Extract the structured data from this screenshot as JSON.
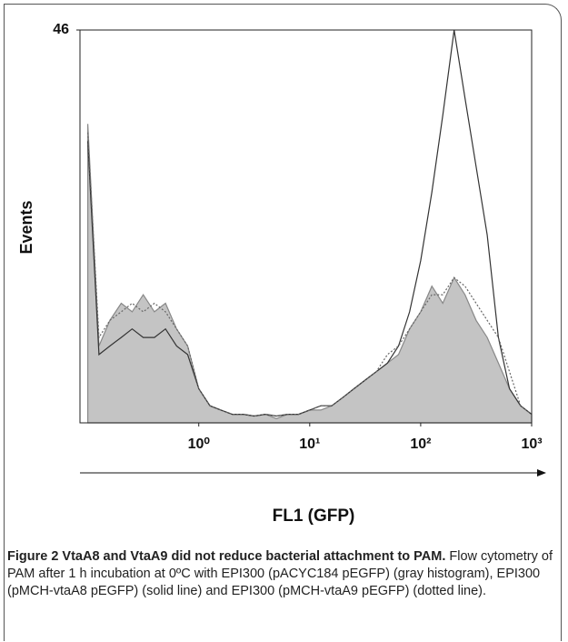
{
  "chart_data": {
    "type": "histogram-overlay",
    "ylabel": "Events",
    "xlabel": "FL1 (GFP)",
    "x": [
      0.1,
      0.126,
      0.158,
      0.2,
      0.251,
      0.316,
      0.398,
      0.501,
      0.631,
      0.794,
      1,
      1.26,
      1.58,
      2,
      2.51,
      3.16,
      3.98,
      5.01,
      6.31,
      7.94,
      10,
      12.6,
      15.8,
      20,
      25.1,
      31.6,
      39.8,
      50.1,
      63.1,
      79.4,
      100,
      126,
      158,
      200,
      251,
      316,
      398,
      501,
      631,
      794,
      1000
    ],
    "series": [
      {
        "style": "filled",
        "color": "#c4c4c4",
        "values": [
          35,
          9,
          12,
          14,
          13,
          15,
          13,
          14,
          11,
          9,
          4,
          2,
          1.5,
          1,
          1,
          0.8,
          1,
          0.5,
          1,
          1,
          1.5,
          1.5,
          2,
          3,
          4,
          5,
          6,
          7,
          8,
          11,
          13,
          16,
          14,
          17,
          15,
          12,
          10,
          7,
          4,
          2,
          1
        ]
      },
      {
        "style": "solid",
        "color": "#333333",
        "values": [
          33,
          8,
          9,
          10,
          11,
          10,
          10,
          11,
          9,
          8,
          4,
          2,
          1.5,
          1,
          1,
          0.8,
          1,
          0.8,
          1,
          1,
          1.5,
          2,
          2,
          3,
          4,
          5,
          6,
          7,
          9,
          13,
          19,
          27,
          36,
          46,
          38,
          30,
          22,
          10,
          4,
          2,
          1
        ]
      },
      {
        "style": "dotted",
        "color": "#666666",
        "values": [
          34,
          10,
          12,
          13,
          14,
          13,
          14,
          13,
          11,
          9,
          4,
          2,
          1.5,
          1,
          1,
          0.8,
          1,
          0.8,
          1,
          1,
          1.5,
          2,
          2,
          3,
          4,
          5,
          6,
          8,
          9,
          11,
          13,
          15,
          15,
          17,
          16,
          14,
          12,
          10,
          6,
          2,
          1
        ]
      }
    ],
    "xscale": "log",
    "xlim": [
      0.085,
      1000
    ],
    "xticks": [
      {
        "value": 1,
        "label": "10⁰"
      },
      {
        "value": 10,
        "label": "10¹"
      },
      {
        "value": 100,
        "label": "10²"
      },
      {
        "value": 1000,
        "label": "10³"
      }
    ],
    "ylim": [
      0,
      46
    ],
    "yticks": [
      46
    ]
  },
  "caption": {
    "title": "Figure 2 VtaA8 and VtaA9 did not reduce bacterial attachment to PAM.",
    "text": "Flow cytometry of PAM after 1 h incubation at 0ºC with EPI300 (pACYC184 pEGFP) (gray histogram), EPI300 (pMCH-vtaA8 pEGFP) (solid line) and EPI300 (pMCH-vtaA9 pEGFP) (dotted line)."
  }
}
